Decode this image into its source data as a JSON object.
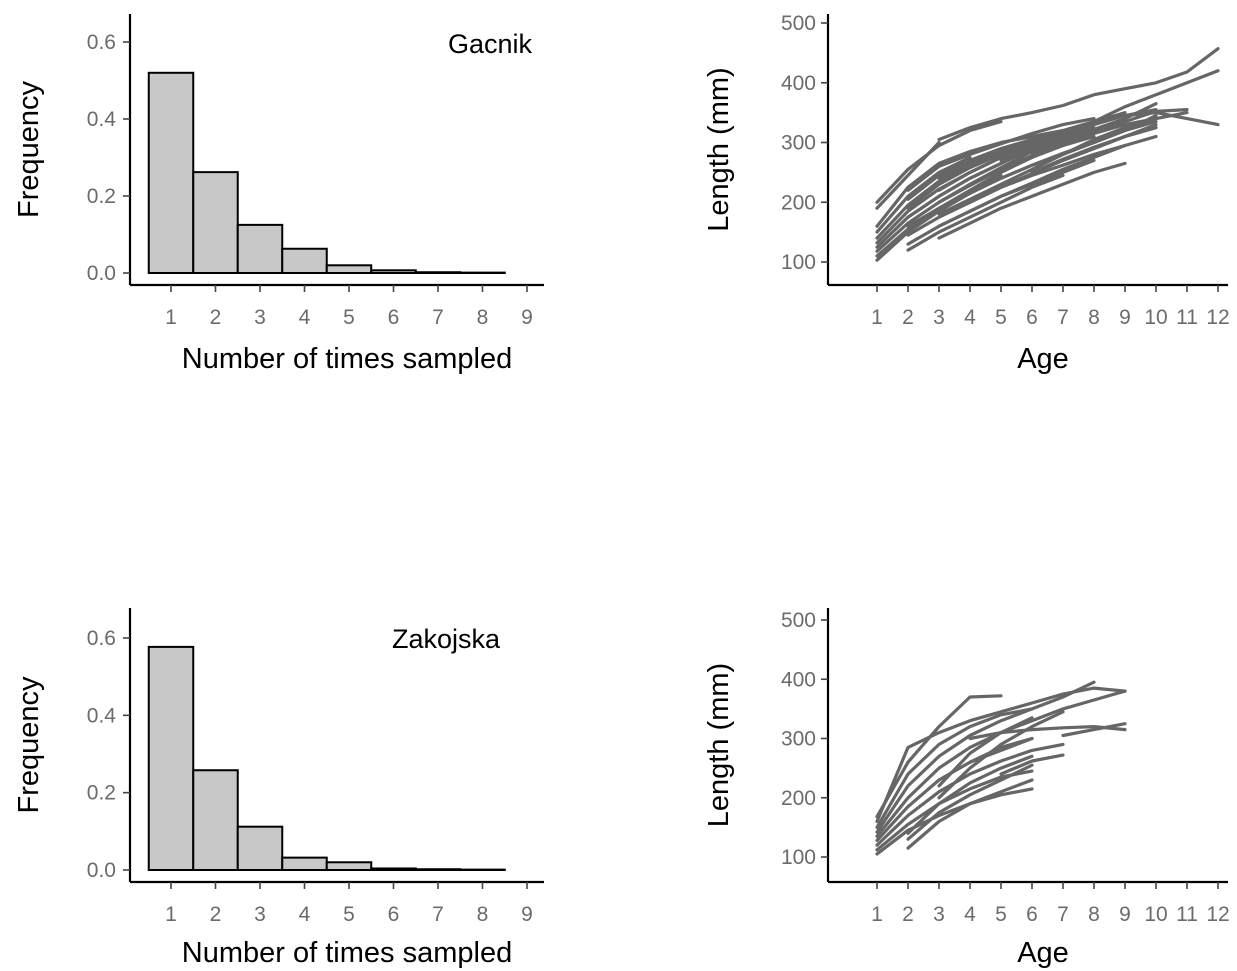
{
  "chart_data": [
    {
      "type": "bar",
      "panel_label": "Gacnik",
      "xlabel": "Number of times sampled",
      "ylabel": "Frequency",
      "categories": [
        "1",
        "2",
        "3",
        "4",
        "5",
        "6",
        "7",
        "8",
        "9"
      ],
      "values": [
        0.52,
        0.262,
        0.125,
        0.063,
        0.02,
        0.007,
        0.002,
        0.001,
        0
      ],
      "ylim": [
        0,
        0.68
      ],
      "yticks": [
        "0.0",
        "0.2",
        "0.4",
        "0.6"
      ],
      "bar_fill": "#c8c8c8",
      "bar_stroke": "#000000"
    },
    {
      "type": "line",
      "xlabel": "Age",
      "ylabel": "Length (mm)",
      "xlim": [
        1,
        12
      ],
      "ylim": [
        85,
        520
      ],
      "xticks": [
        "1",
        "2",
        "3",
        "4",
        "5",
        "6",
        "7",
        "8",
        "9",
        "10",
        "11",
        "12"
      ],
      "yticks": [
        "100",
        "200",
        "300",
        "400",
        "500"
      ],
      "line_color": "#666666",
      "series": [
        {
          "x": [
            1,
            2,
            3,
            4,
            5
          ],
          "y": [
            103,
            150,
            185,
            215,
            245
          ]
        },
        {
          "x": [
            1,
            2,
            3,
            4,
            5,
            6
          ],
          "y": [
            110,
            155,
            190,
            220,
            250,
            275
          ]
        },
        {
          "x": [
            1,
            2,
            3,
            4,
            5,
            6,
            7
          ],
          "y": [
            118,
            165,
            200,
            230,
            258,
            285,
            300
          ]
        },
        {
          "x": [
            1,
            2,
            3,
            4,
            5,
            6,
            7,
            8
          ],
          "y": [
            125,
            175,
            210,
            240,
            265,
            290,
            310,
            325
          ]
        },
        {
          "x": [
            1,
            2,
            3,
            4,
            5,
            6
          ],
          "y": [
            132,
            185,
            222,
            250,
            275,
            295
          ]
        },
        {
          "x": [
            1,
            2,
            3,
            4,
            5,
            6,
            7,
            8,
            9,
            10
          ],
          "y": [
            140,
            195,
            235,
            262,
            285,
            305,
            320,
            335,
            345,
            355
          ]
        },
        {
          "x": [
            1,
            2,
            3,
            4
          ],
          "y": [
            150,
            210,
            250,
            275
          ]
        },
        {
          "x": [
            1,
            2,
            3,
            4,
            5,
            6,
            7
          ],
          "y": [
            160,
            225,
            265,
            285,
            300,
            310,
            320
          ]
        },
        {
          "x": [
            1,
            2,
            3
          ],
          "y": [
            190,
            245,
            300
          ]
        },
        {
          "x": [
            1,
            2,
            3,
            4,
            5
          ],
          "y": [
            200,
            255,
            295,
            320,
            335
          ]
        },
        {
          "x": [
            2,
            3,
            4,
            5,
            6,
            7
          ],
          "y": [
            120,
            150,
            175,
            200,
            225,
            245
          ]
        },
        {
          "x": [
            2,
            3,
            4,
            5,
            6,
            7,
            8
          ],
          "y": [
            130,
            160,
            185,
            210,
            230,
            250,
            270
          ]
        },
        {
          "x": [
            2,
            3,
            4,
            5,
            6,
            7,
            8,
            9
          ],
          "y": [
            145,
            175,
            200,
            225,
            245,
            262,
            280,
            295
          ]
        },
        {
          "x": [
            2,
            3,
            4,
            5,
            6,
            7,
            8,
            9,
            10
          ],
          "y": [
            160,
            190,
            215,
            240,
            262,
            280,
            300,
            320,
            335
          ]
        },
        {
          "x": [
            2,
            3,
            4,
            5,
            6,
            7,
            8,
            9,
            10,
            11,
            12
          ],
          "y": [
            175,
            210,
            240,
            265,
            290,
            310,
            335,
            360,
            380,
            400,
            420
          ]
        },
        {
          "x": [
            2,
            3,
            4,
            5,
            6,
            7
          ],
          "y": [
            190,
            230,
            258,
            280,
            300,
            318
          ]
        },
        {
          "x": [
            2,
            3,
            4,
            5,
            6
          ],
          "y": [
            205,
            245,
            270,
            290,
            305
          ]
        },
        {
          "x": [
            2,
            3,
            4,
            5,
            6,
            7,
            8
          ],
          "y": [
            220,
            260,
            280,
            298,
            315,
            330,
            340
          ]
        },
        {
          "x": [
            3,
            4,
            5,
            6,
            7,
            8,
            9
          ],
          "y": [
            140,
            165,
            190,
            210,
            230,
            250,
            265
          ]
        },
        {
          "x": [
            3,
            4,
            5,
            6,
            7,
            8,
            9,
            10
          ],
          "y": [
            160,
            185,
            210,
            232,
            255,
            275,
            295,
            310
          ]
        },
        {
          "x": [
            3,
            4,
            5,
            6,
            7,
            8,
            9,
            10,
            11
          ],
          "y": [
            180,
            205,
            230,
            255,
            280,
            305,
            325,
            340,
            350
          ]
        },
        {
          "x": [
            3,
            4,
            5,
            6,
            7,
            8
          ],
          "y": [
            200,
            228,
            255,
            275,
            295,
            310
          ]
        },
        {
          "x": [
            3,
            4,
            5,
            6,
            7,
            8,
            9,
            10,
            11,
            12
          ],
          "y": [
            220,
            250,
            275,
            295,
            315,
            330,
            345,
            350,
            340,
            330
          ]
        },
        {
          "x": [
            3,
            4,
            5,
            6,
            7
          ],
          "y": [
            240,
            265,
            285,
            300,
            312
          ]
        },
        {
          "x": [
            3,
            4,
            5,
            6,
            7,
            8,
            9,
            10,
            11,
            12
          ],
          "y": [
            305,
            325,
            340,
            350,
            362,
            380,
            390,
            400,
            418,
            457
          ]
        },
        {
          "x": [
            4,
            5,
            6,
            7,
            8,
            9,
            10
          ],
          "y": [
            200,
            225,
            248,
            270,
            290,
            310,
            325
          ]
        },
        {
          "x": [
            4,
            5,
            6,
            7,
            8,
            9,
            10
          ],
          "y": [
            230,
            255,
            278,
            295,
            315,
            330,
            340
          ]
        },
        {
          "x": [
            4,
            5,
            6,
            7,
            8,
            9
          ],
          "y": [
            260,
            282,
            300,
            318,
            335,
            350
          ]
        },
        {
          "x": [
            5,
            6,
            7,
            8,
            9,
            10
          ],
          "y": [
            240,
            262,
            282,
            300,
            320,
            345
          ]
        },
        {
          "x": [
            5,
            6,
            7,
            8,
            9,
            10
          ],
          "y": [
            270,
            290,
            305,
            322,
            340,
            365
          ]
        },
        {
          "x": [
            6,
            7,
            8,
            9,
            10
          ],
          "y": [
            250,
            272,
            292,
            310,
            330
          ]
        },
        {
          "x": [
            6,
            7,
            8,
            9,
            10,
            11
          ],
          "y": [
            280,
            300,
            318,
            335,
            352,
            355
          ]
        },
        {
          "x": [
            7,
            8,
            9,
            10
          ],
          "y": [
            270,
            290,
            310,
            325
          ]
        },
        {
          "x": [
            8,
            9,
            10
          ],
          "y": [
            300,
            325,
            340
          ]
        }
      ]
    },
    {
      "type": "bar",
      "panel_label": "Zakojska",
      "xlabel": "Number of times sampled",
      "ylabel": "Frequency",
      "categories": [
        "1",
        "2",
        "3",
        "4",
        "5",
        "6",
        "7",
        "8",
        "9"
      ],
      "values": [
        0.577,
        0.258,
        0.112,
        0.032,
        0.02,
        0.004,
        0.002,
        0.001,
        0
      ],
      "ylim": [
        0,
        0.68
      ],
      "yticks": [
        "0.0",
        "0.2",
        "0.4",
        "0.6"
      ],
      "bar_fill": "#c8c8c8",
      "bar_stroke": "#000000"
    },
    {
      "type": "line",
      "xlabel": "Age",
      "ylabel": "Length (mm)",
      "xlim": [
        1,
        12
      ],
      "ylim": [
        85,
        520
      ],
      "xticks": [
        "1",
        "2",
        "3",
        "4",
        "5",
        "6",
        "7",
        "8",
        "9",
        "10",
        "11",
        "12"
      ],
      "yticks": [
        "100",
        "200",
        "300",
        "400",
        "500"
      ],
      "line_color": "#666666",
      "series": [
        {
          "x": [
            1,
            2,
            3,
            4,
            5,
            6
          ],
          "y": [
            105,
            145,
            170,
            190,
            205,
            215
          ]
        },
        {
          "x": [
            1,
            2,
            3,
            4,
            5,
            6
          ],
          "y": [
            112,
            155,
            190,
            215,
            235,
            245
          ]
        },
        {
          "x": [
            1,
            2,
            3,
            4,
            5,
            6,
            7
          ],
          "y": [
            120,
            170,
            210,
            240,
            262,
            280,
            290
          ]
        },
        {
          "x": [
            1,
            2,
            3,
            4,
            5,
            6
          ],
          "y": [
            128,
            185,
            230,
            260,
            285,
            300
          ]
        },
        {
          "x": [
            1,
            2,
            3,
            4,
            5,
            6,
            7,
            8,
            9
          ],
          "y": [
            135,
            200,
            250,
            285,
            310,
            330,
            350,
            365,
            380
          ]
        },
        {
          "x": [
            1,
            2,
            3,
            4,
            5,
            6,
            7,
            8
          ],
          "y": [
            142,
            220,
            270,
            305,
            330,
            350,
            370,
            395
          ]
        },
        {
          "x": [
            1,
            2,
            3,
            4,
            5,
            6
          ],
          "y": [
            150,
            240,
            290,
            320,
            340,
            350
          ]
        },
        {
          "x": [
            1,
            2,
            3,
            4,
            5,
            6,
            7,
            8,
            9
          ],
          "y": [
            160,
            285,
            310,
            330,
            345,
            360,
            375,
            385,
            380
          ]
        },
        {
          "x": [
            1,
            2,
            3,
            4,
            5
          ],
          "y": [
            168,
            260,
            320,
            370,
            372
          ]
        },
        {
          "x": [
            2,
            3,
            4,
            5,
            6
          ],
          "y": [
            115,
            160,
            190,
            210,
            230
          ]
        },
        {
          "x": [
            2,
            3,
            4,
            5,
            6
          ],
          "y": [
            130,
            175,
            205,
            230,
            255
          ]
        },
        {
          "x": [
            2,
            3,
            4,
            5,
            6
          ],
          "y": [
            140,
            190,
            225,
            250,
            270
          ]
        },
        {
          "x": [
            3,
            4,
            5,
            6,
            7
          ],
          "y": [
            200,
            250,
            290,
            320,
            345
          ]
        },
        {
          "x": [
            3,
            4,
            5,
            6
          ],
          "y": [
            220,
            275,
            310,
            335
          ]
        },
        {
          "x": [
            4,
            5,
            6,
            7,
            8,
            9
          ],
          "y": [
            300,
            310,
            315,
            318,
            320,
            315
          ]
        },
        {
          "x": [
            4,
            5,
            6
          ],
          "y": [
            260,
            280,
            300
          ]
        },
        {
          "x": [
            5,
            6,
            7
          ],
          "y": [
            240,
            262,
            272
          ]
        },
        {
          "x": [
            7,
            8,
            9
          ],
          "y": [
            305,
            315,
            325
          ]
        }
      ]
    }
  ]
}
